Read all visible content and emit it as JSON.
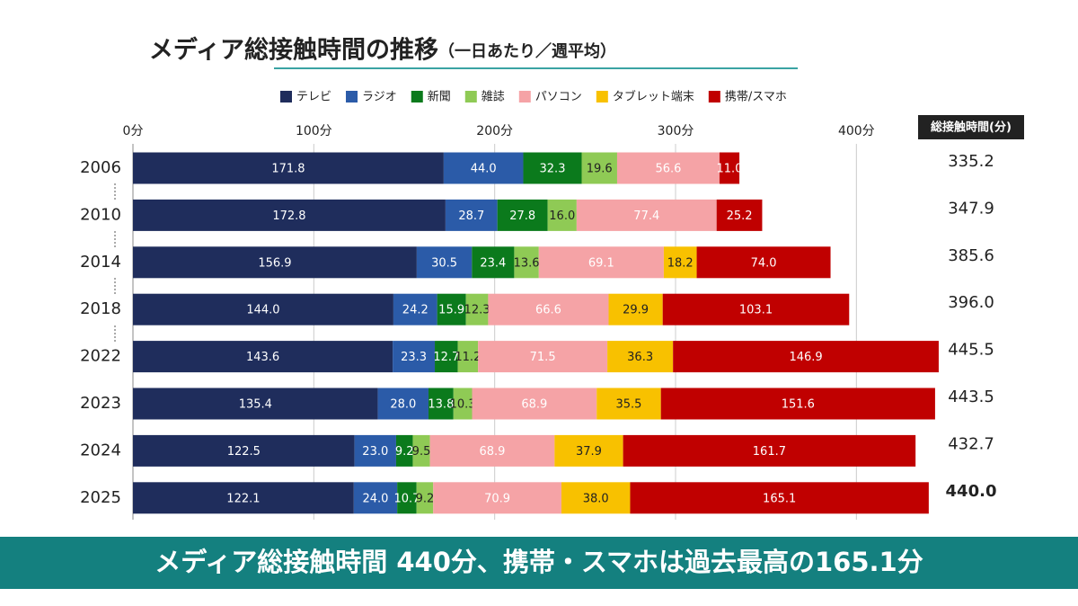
{
  "chart_data": {
    "type": "stacked_bar",
    "orientation": "horizontal",
    "title": "メディア総接触時間の推移",
    "subtitle": "（一日あたり／週平均）",
    "headline": "メディア総接触時間 440分、携帯・スマホは過去最高の165.1分",
    "categories": [
      "2006",
      "2010",
      "2014",
      "2018",
      "2022",
      "2023",
      "2024",
      "2025"
    ],
    "xlim": [
      0,
      450
    ],
    "xticks": [
      {
        "value": 0,
        "label": "0分"
      },
      {
        "value": 100,
        "label": "100分"
      },
      {
        "value": 200,
        "label": "200分"
      },
      {
        "value": 300,
        "label": "300分"
      },
      {
        "value": 400,
        "label": "400分"
      }
    ],
    "grid": true,
    "legend": "top",
    "series": [
      {
        "name": "テレビ",
        "color": "#1f2d5c",
        "values": [
          171.8,
          172.8,
          156.9,
          144.0,
          143.6,
          135.4,
          122.5,
          122.1
        ],
        "value_labels": [
          "171.8",
          "172.8",
          "156.9",
          "144.0",
          "143.6",
          "135.4",
          "122.5",
          "122.1"
        ]
      },
      {
        "name": "ラジオ",
        "color": "#2b5ba8",
        "values": [
          44.0,
          28.7,
          30.5,
          24.2,
          23.3,
          28.0,
          23.0,
          24.0
        ],
        "value_labels": [
          "44.0",
          "28.7",
          "30.5",
          "24.2",
          "23.3",
          "28.0",
          "23.0",
          "24.0"
        ]
      },
      {
        "name": "新聞",
        "color": "#0b7a1c",
        "values": [
          32.3,
          27.8,
          23.4,
          15.9,
          12.7,
          13.8,
          9.2,
          10.7
        ]
      },
      {
        "name": "雑誌",
        "color": "#8fca55",
        "values": [
          19.6,
          16.0,
          13.6,
          12.3,
          11.2,
          10.3,
          9.5,
          9.2
        ],
        "value_labels": [
          "19.6",
          "16.0",
          "13.6",
          "12.3",
          "11.2",
          "10.3",
          "9.5",
          "9.2"
        ]
      },
      {
        "name": "パソコン",
        "color": "#f5a3a6",
        "values": [
          56.6,
          77.4,
          69.1,
          66.6,
          71.5,
          68.9,
          68.9,
          70.9
        ]
      },
      {
        "name": "タブレット端末",
        "color": "#f8c100",
        "values": [
          null,
          null,
          18.2,
          29.9,
          36.3,
          35.5,
          37.9,
          38.0
        ],
        "value_labels": [
          null,
          null,
          "18.2",
          "29.9",
          "36.3",
          "35.5",
          "37.9",
          "38.0"
        ]
      },
      {
        "name": "携帯/スマホ",
        "color": "#c00000",
        "values": [
          11.0,
          25.2,
          74.0,
          103.1,
          146.9,
          151.6,
          161.7,
          165.1
        ],
        "value_labels": [
          "11.0",
          "25.2",
          "74.0",
          "103.1",
          "146.9",
          "151.6",
          "161.7",
          "165.1"
        ]
      }
    ],
    "totals": {
      "name": "総接触時間(分)",
      "values": [
        335.2,
        347.9,
        385.6,
        396.0,
        445.5,
        443.5,
        432.7,
        440.0
      ],
      "value_labels": [
        "335.2",
        "347.9",
        "385.6",
        "396.0",
        "445.5",
        "443.5",
        "432.7",
        "440.0"
      ],
      "highlight_color": "#a01a1a"
    }
  }
}
